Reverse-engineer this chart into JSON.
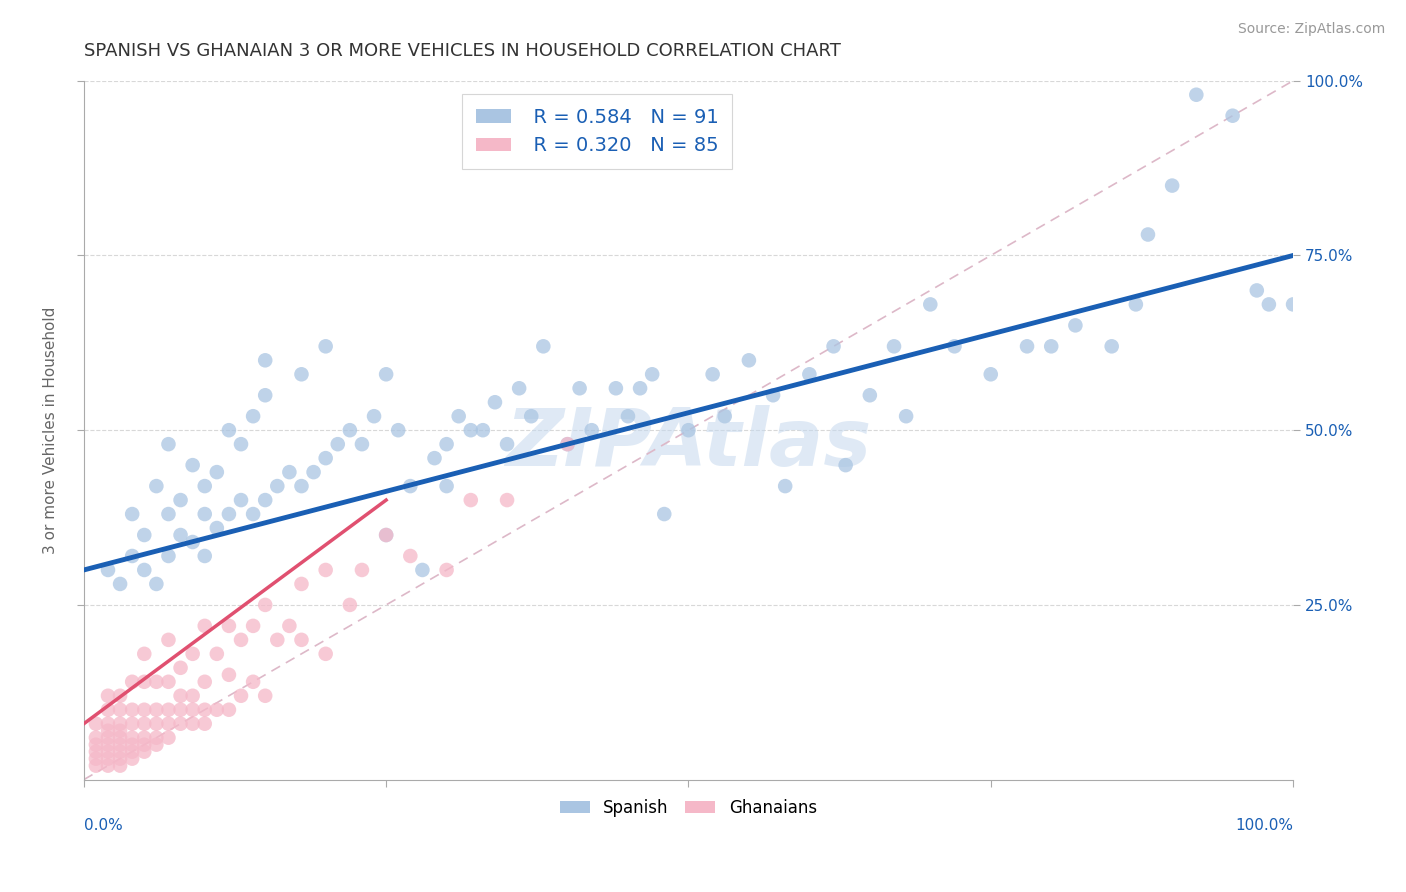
{
  "title": "SPANISH VS GHANAIAN 3 OR MORE VEHICLES IN HOUSEHOLD CORRELATION CHART",
  "source": "Source: ZipAtlas.com",
  "ylabel": "3 or more Vehicles in Household",
  "xlim": [
    0,
    1.0
  ],
  "ylim": [
    0,
    1.0
  ],
  "ytick_positions": [
    0.25,
    0.5,
    0.75,
    1.0
  ],
  "legend_r1": "R = 0.584",
  "legend_n1": "N = 91",
  "legend_r2": "R = 0.320",
  "legend_n2": "N = 85",
  "legend_label1": "Spanish",
  "legend_label2": "Ghanaians",
  "color_spanish": "#aac5e2",
  "color_ghanaian": "#f5b8c8",
  "trendline_color_spanish": "#1a5fb4",
  "trendline_color_ghanaian": "#e05070",
  "ref_line_color": "#ddb8c8",
  "grid_color": "#d8d8d8",
  "background_color": "#ffffff",
  "title_fontsize": 13,
  "axis_label_fontsize": 11,
  "tick_fontsize": 11,
  "source_fontsize": 10,
  "watermark_text": "ZIPAtlas",
  "spanish_x": [
    0.02,
    0.03,
    0.04,
    0.04,
    0.05,
    0.05,
    0.06,
    0.06,
    0.07,
    0.07,
    0.07,
    0.08,
    0.08,
    0.09,
    0.09,
    0.1,
    0.1,
    0.1,
    0.11,
    0.11,
    0.12,
    0.12,
    0.13,
    0.13,
    0.14,
    0.14,
    0.15,
    0.15,
    0.16,
    0.17,
    0.18,
    0.18,
    0.19,
    0.2,
    0.21,
    0.22,
    0.23,
    0.24,
    0.25,
    0.26,
    0.27,
    0.28,
    0.29,
    0.3,
    0.31,
    0.32,
    0.33,
    0.34,
    0.35,
    0.36,
    0.37,
    0.38,
    0.4,
    0.41,
    0.42,
    0.44,
    0.45,
    0.46,
    0.47,
    0.48,
    0.5,
    0.52,
    0.53,
    0.55,
    0.57,
    0.58,
    0.6,
    0.62,
    0.63,
    0.65,
    0.67,
    0.68,
    0.7,
    0.72,
    0.75,
    0.78,
    0.8,
    0.82,
    0.85,
    0.87,
    0.88,
    0.9,
    0.92,
    0.95,
    0.97,
    0.98,
    1.0,
    0.3,
    0.25,
    0.2,
    0.15
  ],
  "spanish_y": [
    0.3,
    0.28,
    0.32,
    0.38,
    0.3,
    0.35,
    0.28,
    0.42,
    0.32,
    0.38,
    0.48,
    0.35,
    0.4,
    0.34,
    0.45,
    0.32,
    0.38,
    0.42,
    0.36,
    0.44,
    0.38,
    0.5,
    0.4,
    0.48,
    0.38,
    0.52,
    0.4,
    0.55,
    0.42,
    0.44,
    0.42,
    0.58,
    0.44,
    0.46,
    0.48,
    0.5,
    0.48,
    0.52,
    0.35,
    0.5,
    0.42,
    0.3,
    0.46,
    0.48,
    0.52,
    0.5,
    0.5,
    0.54,
    0.48,
    0.56,
    0.52,
    0.62,
    0.48,
    0.56,
    0.5,
    0.56,
    0.52,
    0.56,
    0.58,
    0.38,
    0.5,
    0.58,
    0.52,
    0.6,
    0.55,
    0.42,
    0.58,
    0.62,
    0.45,
    0.55,
    0.62,
    0.52,
    0.68,
    0.62,
    0.58,
    0.62,
    0.62,
    0.65,
    0.62,
    0.68,
    0.78,
    0.85,
    0.98,
    0.95,
    0.7,
    0.68,
    0.68,
    0.42,
    0.58,
    0.62,
    0.6
  ],
  "ghanaian_x": [
    0.01,
    0.01,
    0.01,
    0.01,
    0.01,
    0.01,
    0.02,
    0.02,
    0.02,
    0.02,
    0.02,
    0.02,
    0.02,
    0.02,
    0.02,
    0.03,
    0.03,
    0.03,
    0.03,
    0.03,
    0.03,
    0.03,
    0.03,
    0.03,
    0.04,
    0.04,
    0.04,
    0.04,
    0.04,
    0.04,
    0.04,
    0.05,
    0.05,
    0.05,
    0.05,
    0.05,
    0.05,
    0.05,
    0.06,
    0.06,
    0.06,
    0.06,
    0.06,
    0.07,
    0.07,
    0.07,
    0.07,
    0.07,
    0.08,
    0.08,
    0.08,
    0.08,
    0.09,
    0.09,
    0.09,
    0.09,
    0.1,
    0.1,
    0.1,
    0.1,
    0.11,
    0.11,
    0.12,
    0.12,
    0.12,
    0.13,
    0.13,
    0.14,
    0.14,
    0.15,
    0.15,
    0.16,
    0.17,
    0.18,
    0.18,
    0.2,
    0.2,
    0.22,
    0.23,
    0.25,
    0.27,
    0.3,
    0.32,
    0.35,
    0.4
  ],
  "ghanaian_y": [
    0.02,
    0.03,
    0.04,
    0.05,
    0.06,
    0.08,
    0.02,
    0.03,
    0.04,
    0.05,
    0.06,
    0.07,
    0.08,
    0.1,
    0.12,
    0.02,
    0.03,
    0.04,
    0.05,
    0.06,
    0.07,
    0.08,
    0.1,
    0.12,
    0.03,
    0.04,
    0.05,
    0.06,
    0.08,
    0.1,
    0.14,
    0.04,
    0.05,
    0.06,
    0.08,
    0.1,
    0.14,
    0.18,
    0.05,
    0.06,
    0.08,
    0.1,
    0.14,
    0.06,
    0.08,
    0.1,
    0.14,
    0.2,
    0.08,
    0.1,
    0.12,
    0.16,
    0.08,
    0.1,
    0.12,
    0.18,
    0.08,
    0.1,
    0.14,
    0.22,
    0.1,
    0.18,
    0.1,
    0.15,
    0.22,
    0.12,
    0.2,
    0.14,
    0.22,
    0.12,
    0.25,
    0.2,
    0.22,
    0.2,
    0.28,
    0.18,
    0.3,
    0.25,
    0.3,
    0.35,
    0.32,
    0.3,
    0.4,
    0.4,
    0.48
  ],
  "blue_trendline_x0": 0.0,
  "blue_trendline_y0": 0.3,
  "blue_trendline_x1": 1.0,
  "blue_trendline_y1": 0.75,
  "pink_trendline_x0": 0.0,
  "pink_trendline_y0": 0.08,
  "pink_trendline_x1": 0.25,
  "pink_trendline_y1": 0.4
}
